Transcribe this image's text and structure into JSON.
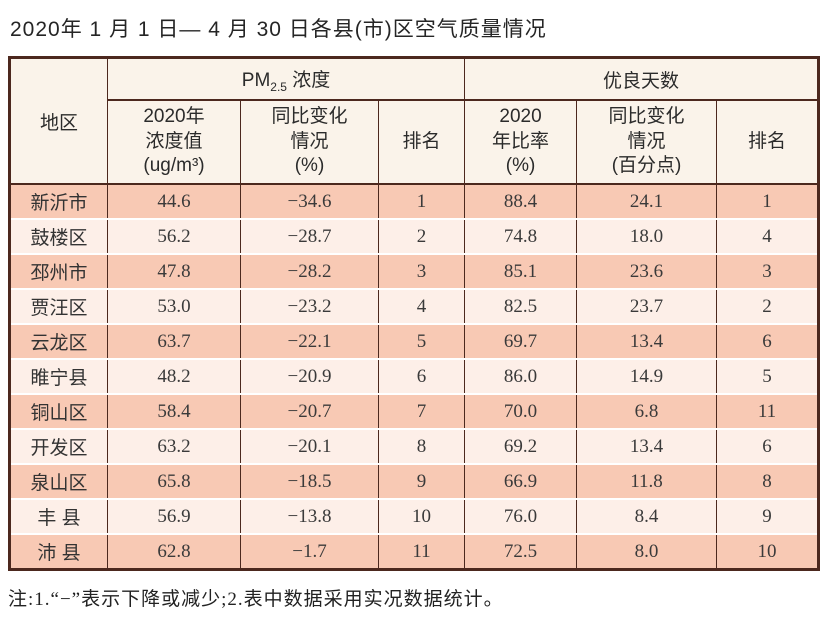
{
  "page": {
    "title": "2020年 1 月 1 日— 4 月 30 日各县(市)区空气质量情况",
    "note": "注:1.“−”表示下降或减少;2.表中数据采用实况数据统计。"
  },
  "colors": {
    "border": "#4c281e",
    "header_bg": "#faf3ea",
    "row_odd_bg": "#f8c9b4",
    "row_even_bg": "#fdefe8",
    "page_bg": "#ffffff"
  },
  "table": {
    "region_header": "地区",
    "pm_group": {
      "prefix": "PM",
      "sub": "2.5",
      "suffix": " 浓度"
    },
    "good_group": "优良天数",
    "sub_headers": {
      "pm_value": "2020年\n浓度值\n(ug/m³)",
      "pm_change": "同比变化\n情况\n(%)",
      "pm_rank": "排名",
      "good_ratio": "2020\n年比率\n(%)",
      "good_change": "同比变化\n情况\n(百分点)",
      "good_rank": "排名"
    },
    "rows": [
      [
        "新沂市",
        "44.6",
        "−34.6",
        "1",
        "88.4",
        "24.1",
        "1"
      ],
      [
        "鼓楼区",
        "56.2",
        "−28.7",
        "2",
        "74.8",
        "18.0",
        "4"
      ],
      [
        "邳州市",
        "47.8",
        "−28.2",
        "3",
        "85.1",
        "23.6",
        "3"
      ],
      [
        "贾汪区",
        "53.0",
        "−23.2",
        "4",
        "82.5",
        "23.7",
        "2"
      ],
      [
        "云龙区",
        "63.7",
        "−22.1",
        "5",
        "69.7",
        "13.4",
        "6"
      ],
      [
        "睢宁县",
        "48.2",
        "−20.9",
        "6",
        "86.0",
        "14.9",
        "5"
      ],
      [
        "铜山区",
        "58.4",
        "−20.7",
        "7",
        "70.0",
        "6.8",
        "11"
      ],
      [
        "开发区",
        "63.2",
        "−20.1",
        "8",
        "69.2",
        "13.4",
        "6"
      ],
      [
        "泉山区",
        "65.8",
        "−18.5",
        "9",
        "66.9",
        "11.8",
        "8"
      ],
      [
        "丰 县",
        "56.9",
        "−13.8",
        "10",
        "76.0",
        "8.4",
        "9"
      ],
      [
        "沛 县",
        "62.8",
        "−1.7",
        "11",
        "72.5",
        "8.0",
        "10"
      ]
    ]
  }
}
